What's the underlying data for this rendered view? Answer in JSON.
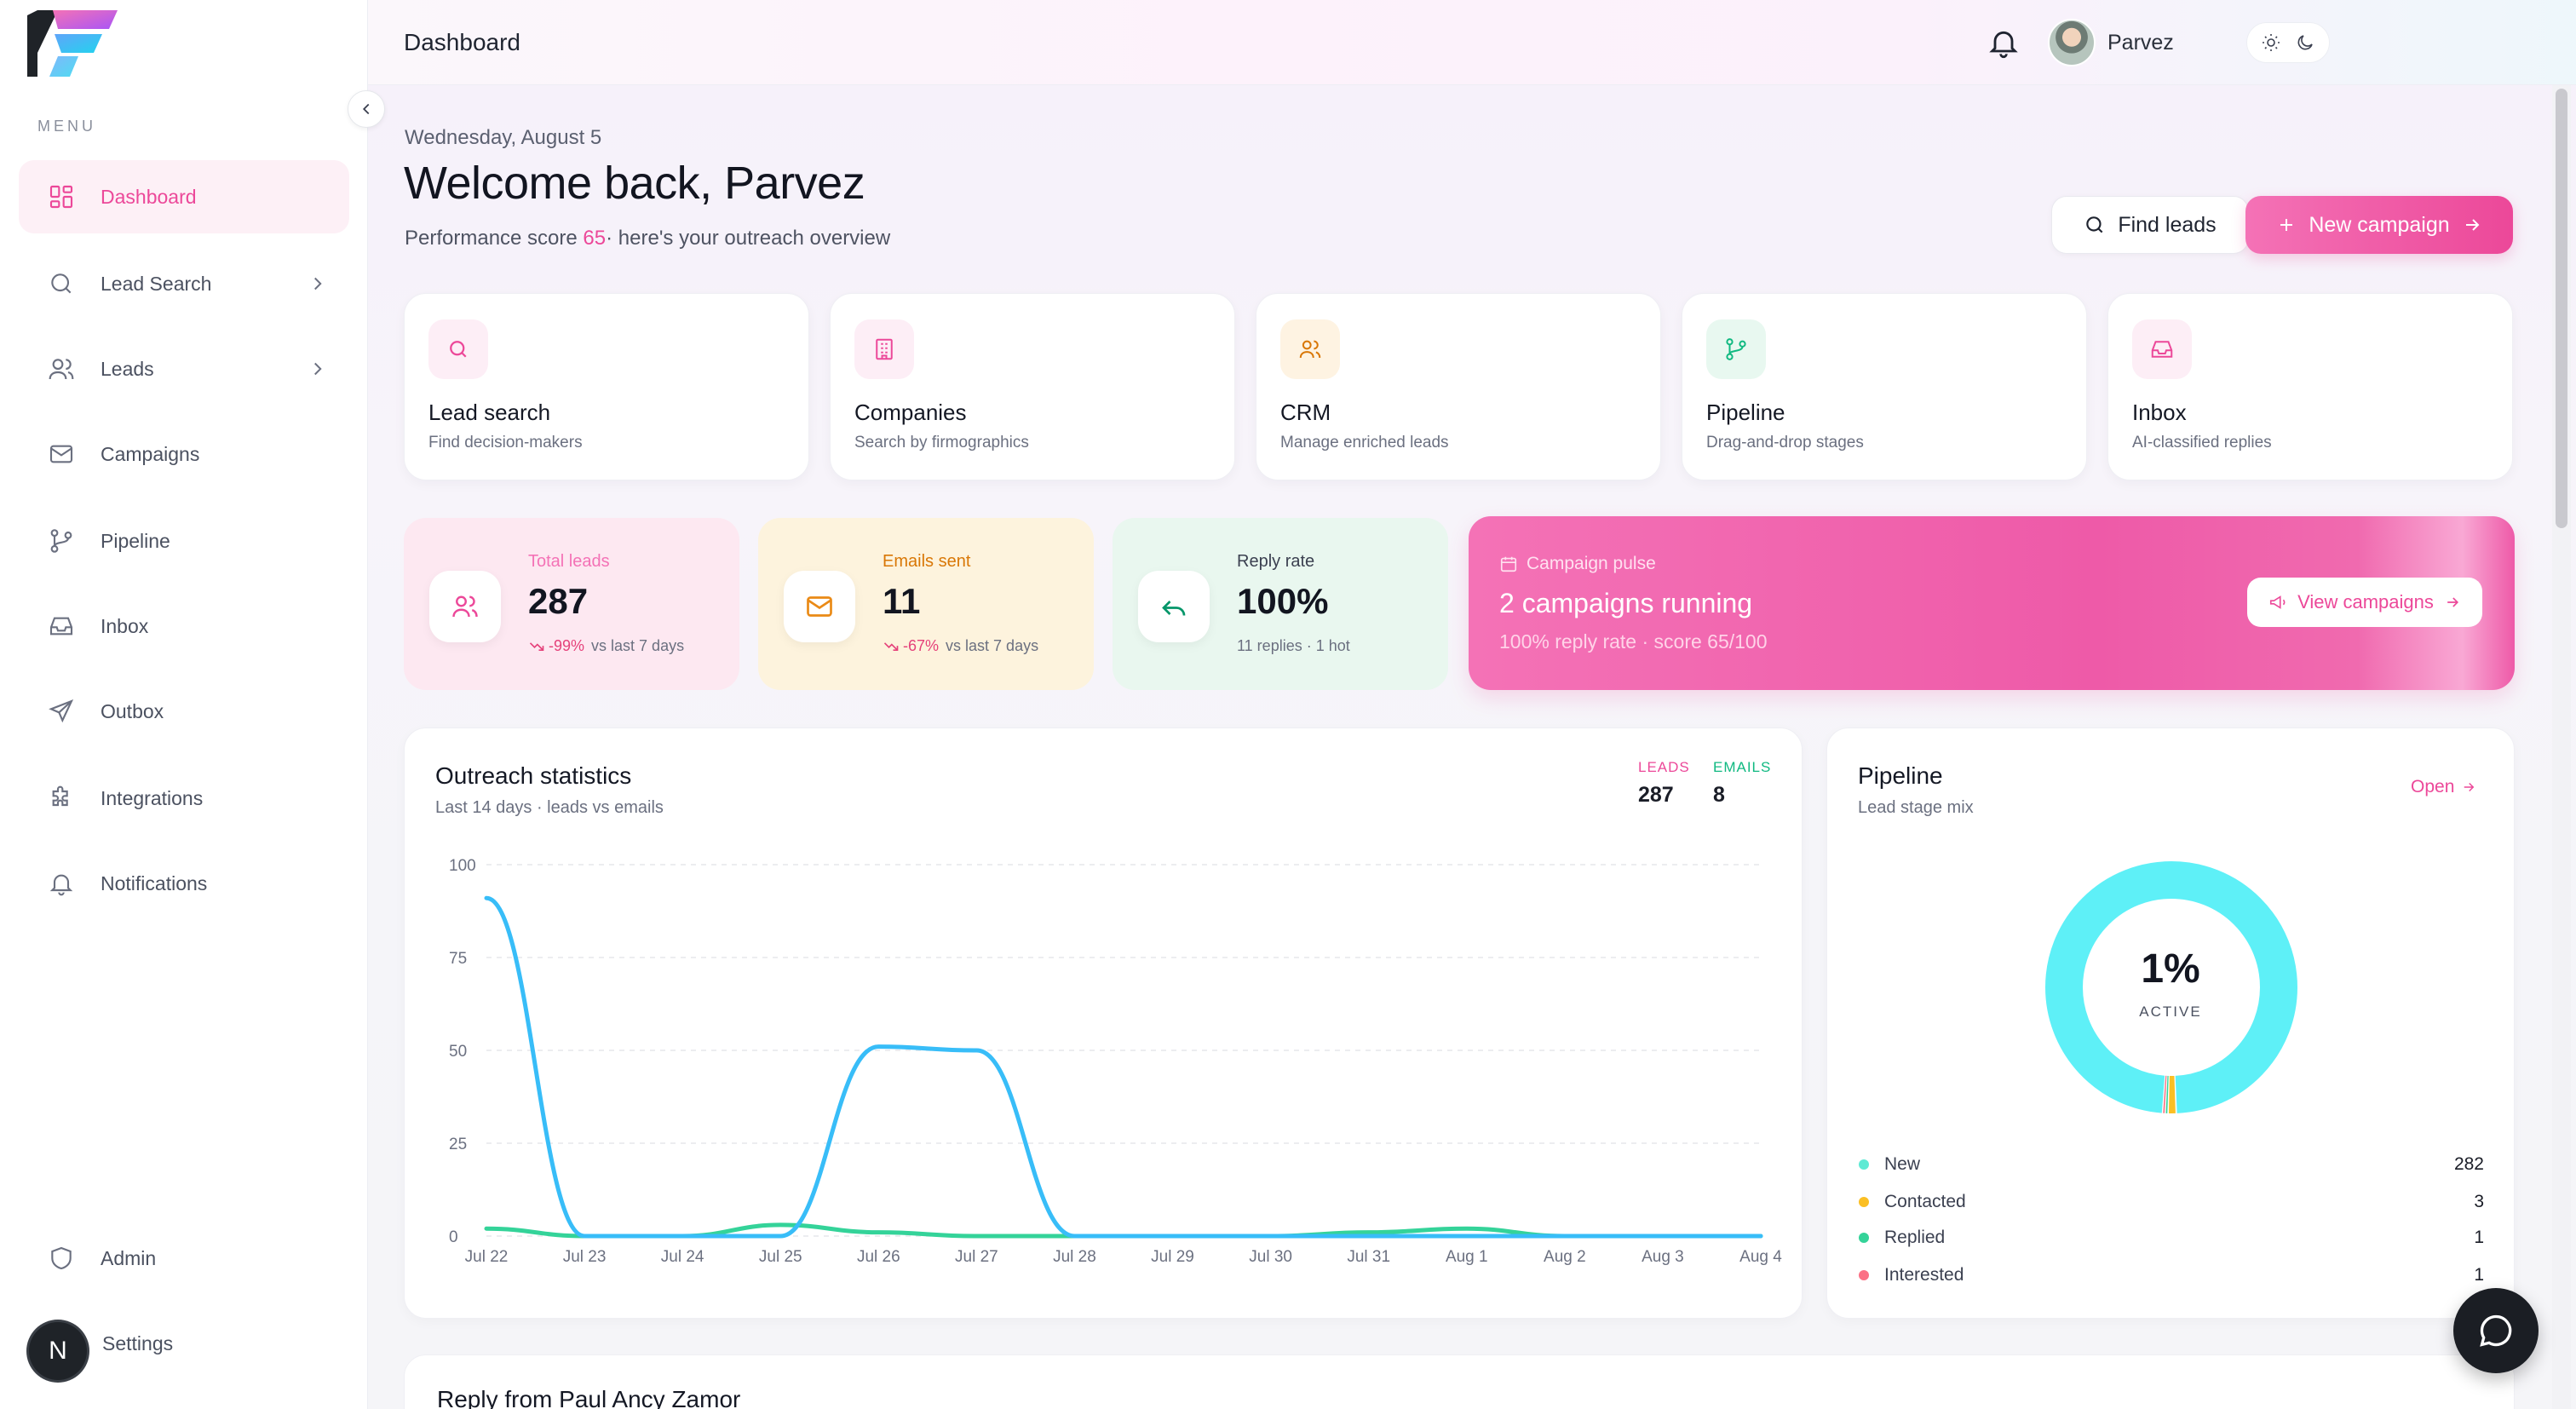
{
  "sidebar": {
    "menu_label": "MENU",
    "items": [
      {
        "label": "Dashboard",
        "icon": "grid-icon",
        "active": true
      },
      {
        "label": "Lead Search",
        "icon": "search-icon",
        "has_chevron": true
      },
      {
        "label": "Leads",
        "icon": "users-icon",
        "has_chevron": true
      },
      {
        "label": "Campaigns",
        "icon": "mail-icon"
      },
      {
        "label": "Pipeline",
        "icon": "git-branch-icon"
      },
      {
        "label": "Inbox",
        "icon": "inbox-icon"
      },
      {
        "label": "Outbox",
        "icon": "send-icon"
      },
      {
        "label": "Integrations",
        "icon": "puzzle-icon"
      },
      {
        "label": "Notifications",
        "icon": "bell-icon"
      }
    ],
    "bottom_items": [
      {
        "label": "Admin",
        "icon": "shield-icon"
      },
      {
        "label": "Settings",
        "icon": "settings-avatar"
      }
    ],
    "avatar_initial": "N"
  },
  "header": {
    "title": "Dashboard",
    "user_name": "Parvez"
  },
  "hero": {
    "date": "Wednesday, August 5",
    "welcome": "Welcome back, Parvez",
    "perf_prefix": "Performance score",
    "perf_score": "65",
    "perf_suffix": "· here's your outreach overview",
    "find_leads": "Find leads",
    "new_campaign": "New campaign"
  },
  "features": [
    {
      "title": "Lead search",
      "sub": "Find decision-makers",
      "icon": "search-icon",
      "color": "#ec4899",
      "bg": "#fdeef6"
    },
    {
      "title": "Companies",
      "sub": "Search by firmographics",
      "icon": "building-icon",
      "color": "#ec4899",
      "bg": "#fdeef6"
    },
    {
      "title": "CRM",
      "sub": "Manage enriched leads",
      "icon": "users-icon",
      "color": "#d97706",
      "bg": "#fef3e2"
    },
    {
      "title": "Pipeline",
      "sub": "Drag-and-drop stages",
      "icon": "git-branch-icon",
      "color": "#10b981",
      "bg": "#e8f8f0"
    },
    {
      "title": "Inbox",
      "sub": "AI-classified replies",
      "icon": "inbox-icon",
      "color": "#ec4899",
      "bg": "#fdeef6"
    }
  ],
  "stats": [
    {
      "label": "Total leads",
      "value": "287",
      "delta": "-99%",
      "foot": "vs last 7 days"
    },
    {
      "label": "Emails sent",
      "value": "11",
      "delta": "-67%",
      "foot": "vs last 7 days"
    },
    {
      "label": "Reply rate",
      "value": "100%",
      "delta": "",
      "foot": "11 replies · 1 hot"
    }
  ],
  "pulse": {
    "label": "Campaign pulse",
    "title": "2 campaigns running",
    "sub": "100% reply rate · score 65/100",
    "button": "View campaigns"
  },
  "outreach": {
    "title": "Outreach statistics",
    "sub": "Last 14 days · leads vs emails",
    "legend_leads": "LEADS",
    "legend_emails": "EMAILS",
    "leads_total": "287",
    "emails_total": "8"
  },
  "chart_data": {
    "type": "line",
    "x": [
      "Jul 22",
      "Jul 23",
      "Jul 24",
      "Jul 25",
      "Jul 26",
      "Jul 27",
      "Jul 28",
      "Jul 29",
      "Jul 30",
      "Jul 31",
      "Aug 1",
      "Aug 2",
      "Aug 3",
      "Aug 4"
    ],
    "ylim": [
      0,
      100
    ],
    "yticks": [
      0,
      25,
      50,
      75,
      100
    ],
    "grid": true,
    "series": [
      {
        "name": "LEADS",
        "color": "#38bdf8",
        "values": [
          91,
          0,
          0,
          0,
          51,
          50,
          0,
          0,
          0,
          0,
          0,
          0,
          0,
          0
        ]
      },
      {
        "name": "EMAILS",
        "color": "#34d399",
        "values": [
          2,
          0,
          0,
          3,
          1,
          0,
          0,
          0,
          0,
          1,
          2,
          0,
          0,
          0
        ]
      }
    ]
  },
  "pipeline": {
    "title": "Pipeline",
    "sub": "Lead stage mix",
    "open": "Open",
    "center_value": "1%",
    "center_label": "ACTIVE",
    "stages": [
      {
        "label": "New",
        "count": 282,
        "color": "#5eead4"
      },
      {
        "label": "Contacted",
        "count": 3,
        "color": "#fbbf24"
      },
      {
        "label": "Replied",
        "count": 1,
        "color": "#34d399"
      },
      {
        "label": "Interested",
        "count": 1,
        "color": "#fb7185"
      }
    ]
  },
  "reply": {
    "title": "Reply from Paul Ancy Zamor"
  }
}
